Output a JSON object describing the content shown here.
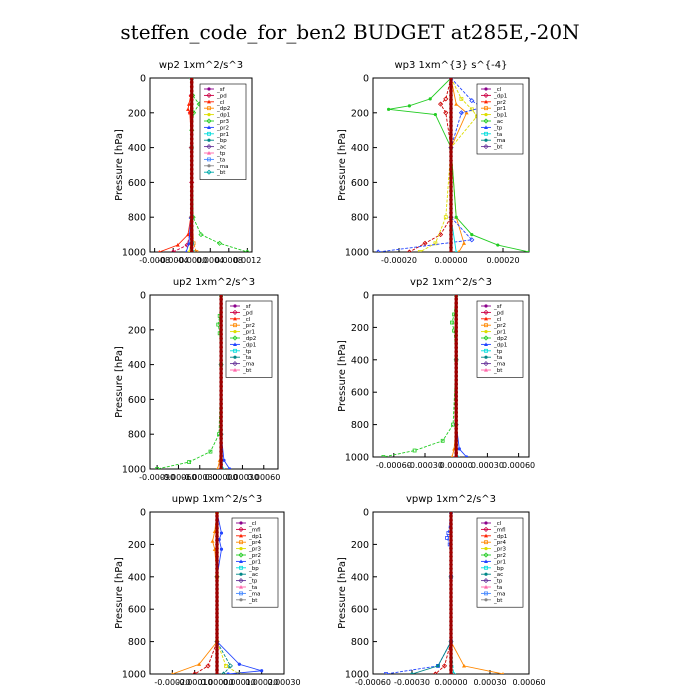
{
  "title": "steffen_code_for_ben2  BUDGET at285E,-20N",
  "chart_data": [
    {
      "type": "line",
      "title": "wp2  1xm^2/s^3",
      "ylabel": "Pressure [hPa]",
      "ylim": [
        1000,
        0
      ],
      "y_ticks": [
        "0",
        "200",
        "400",
        "600",
        "800",
        "1000"
      ],
      "xlim": [
        -0.0009,
        0.0013
      ],
      "x_ticks": [
        {
          "v": -0.0008,
          "label": "-0.0008"
        },
        {
          "v": -0.0004,
          "label": "-0.0004"
        },
        {
          "v": 0.0,
          "label": "-0.0000"
        },
        {
          "v": 0.0004,
          "label": "0.0004"
        },
        {
          "v": 0.0008,
          "label": "0.0008"
        },
        {
          "v": 0.0012,
          "label": "0.0012"
        }
      ],
      "legend": [
        "_sf",
        "_pd",
        "_cl",
        "_dp2",
        "_dp1",
        "_pr3",
        "_pr2",
        "_pr1",
        "_bp",
        "_ac",
        "_tp",
        "_ta",
        "_ma",
        "_bt"
      ],
      "legend_position": "top-right",
      "series": [
        {
          "color": "#8b008b",
          "pressure": [
            0,
            100,
            200,
            400,
            600,
            800,
            900,
            960,
            1000
          ],
          "values": [
            0,
            0,
            0,
            0,
            0,
            0,
            0,
            0,
            2e-05
          ]
        },
        {
          "color": "#cc0044",
          "pressure": [
            0,
            100,
            200,
            400,
            600,
            800,
            900,
            960,
            1000
          ],
          "values": [
            0,
            -1e-05,
            -3e-05,
            -1e-05,
            0,
            -1e-05,
            -4e-05,
            -0.0001,
            -0.0004
          ]
        },
        {
          "color": "#ff2200",
          "pressure": [
            0,
            100,
            150,
            180,
            200,
            400,
            800,
            900,
            960,
            1000
          ],
          "values": [
            0,
            -2e-05,
            -6e-05,
            -8e-05,
            -4e-05,
            0,
            -2e-05,
            -8e-05,
            -0.0003,
            -0.0007
          ]
        },
        {
          "color": "#ff8800",
          "pressure": [
            0,
            400,
            800,
            950,
            1000
          ],
          "values": [
            0,
            0,
            1e-05,
            4e-05,
            0.0001
          ]
        },
        {
          "color": "#dddd00",
          "pressure": [
            0,
            400,
            800,
            950,
            1000
          ],
          "values": [
            0,
            0,
            -1e-05,
            -2e-05,
            -5e-05
          ]
        },
        {
          "color": "#22cc22",
          "pressure": [
            0,
            100,
            150,
            200,
            300,
            800,
            900,
            950,
            1000
          ],
          "values": [
            0,
            2e-05,
            0.00016,
            4e-05,
            0,
            3e-05,
            0.0002,
            0.0006,
            0.0012
          ]
        },
        {
          "color": "#2244ff",
          "pressure": [
            0,
            400,
            800,
            950,
            1000
          ],
          "values": [
            0,
            0,
            -2e-05,
            -6e-05,
            -0.00012
          ]
        },
        {
          "color": "#00dddd",
          "pressure": [
            0,
            400,
            800,
            950,
            1000
          ],
          "values": [
            0,
            0,
            0,
            1e-05,
            2e-05
          ]
        }
      ]
    },
    {
      "type": "line",
      "title": "wp3  1xm^{3} s^{-4}",
      "ylabel": "Pressure [hPa]",
      "ylim": [
        1000,
        0
      ],
      "y_ticks": [
        "0",
        "200",
        "400",
        "600",
        "800",
        "1000"
      ],
      "xlim": [
        -0.0003,
        0.0003
      ],
      "x_ticks": [
        {
          "v": -0.0002,
          "label": "-0.00020"
        },
        {
          "v": 0.0,
          "label": "0.00000"
        },
        {
          "v": 0.0002,
          "label": "0.00020"
        }
      ],
      "legend": [
        "_cl",
        "_dp1",
        "_pr2",
        "_pr1",
        "_bp1",
        "_ac",
        "_tp",
        "_ta",
        "_ma",
        "_bt"
      ],
      "legend_position": "top-right",
      "series": [
        {
          "color": "#8b008b",
          "pressure": [
            0,
            400,
            800,
            1000
          ],
          "values": [
            0,
            0,
            0,
            0
          ]
        },
        {
          "color": "#cc0000",
          "pressure": [
            0,
            120,
            150,
            200,
            400,
            800,
            900,
            950,
            1000
          ],
          "values": [
            0,
            -2e-05,
            -4e-05,
            -2e-05,
            0,
            0,
            -4e-05,
            -0.0001,
            -0.00016
          ]
        },
        {
          "color": "#ff8800",
          "pressure": [
            0,
            150,
            200,
            400,
            800,
            950,
            1000
          ],
          "values": [
            0,
            2e-05,
            6e-05,
            0,
            2e-05,
            5e-05,
            3e-05
          ]
        },
        {
          "color": "#dddd00",
          "pressure": [
            0,
            120,
            180,
            220,
            400,
            800,
            950,
            1000
          ],
          "values": [
            0,
            4e-05,
            8e-05,
            0.0001,
            0,
            -2e-05,
            -6e-05,
            -0.00012
          ]
        },
        {
          "color": "#22cc22",
          "pressure": [
            0,
            120,
            160,
            180,
            210,
            400,
            800,
            900,
            960,
            1000
          ],
          "values": [
            0,
            -8e-05,
            -0.00016,
            -0.00024,
            -6e-05,
            0,
            2e-05,
            8e-05,
            0.00018,
            0.0003
          ]
        },
        {
          "color": "#2244ff",
          "pressure": [
            0,
            130,
            170,
            200,
            400,
            800,
            930,
            1000
          ],
          "values": [
            0,
            8e-05,
            0.00012,
            4e-05,
            0,
            0,
            8e-05,
            -0.00028
          ]
        },
        {
          "color": "#00dddd",
          "pressure": [
            0,
            400,
            800,
            1000
          ],
          "values": [
            0,
            0,
            0,
            2e-05
          ]
        }
      ]
    },
    {
      "type": "line",
      "title": "up2   1xm^2/s^3",
      "ylabel": "Pressure [hPa]",
      "ylim": [
        1000,
        0
      ],
      "y_ticks": [
        "0",
        "200",
        "400",
        "600",
        "800",
        "1000"
      ],
      "xlim": [
        -0.001,
        0.0008
      ],
      "x_ticks": [
        {
          "v": -0.0009,
          "label": "-0.00090"
        },
        {
          "v": -0.0006,
          "label": "-0.00060"
        },
        {
          "v": -0.0003,
          "label": "-0.00030"
        },
        {
          "v": 0.0,
          "label": "0.00000"
        },
        {
          "v": 0.0003,
          "label": "0.00030"
        },
        {
          "v": 0.0006,
          "label": "0.00060"
        }
      ],
      "legend": [
        "_sf",
        "_pd",
        "_cl",
        "_pr2",
        "_pr1",
        "_dp2",
        "_dp1",
        "_tp",
        "_ta",
        "_ma",
        "_bt"
      ],
      "legend_position": "top-right",
      "series": [
        {
          "color": "#8b008b",
          "pressure": [
            0,
            400,
            800,
            1000
          ],
          "values": [
            0,
            0,
            0,
            0
          ]
        },
        {
          "color": "#cc0000",
          "pressure": [
            0,
            400,
            800,
            1000
          ],
          "values": [
            0,
            0,
            0,
            0
          ]
        },
        {
          "color": "#ff8800",
          "pressure": [
            0,
            400,
            800,
            950,
            1000
          ],
          "values": [
            0,
            0,
            0,
            -2e-05,
            -5e-05
          ]
        },
        {
          "color": "#22cc22",
          "pressure": [
            0,
            120,
            170,
            220,
            400,
            800,
            900,
            960,
            1000
          ],
          "values": [
            0,
            -2e-05,
            -4e-05,
            -2e-05,
            0,
            -3e-05,
            -0.00015,
            -0.00045,
            -0.0009
          ]
        },
        {
          "color": "#2244ff",
          "pressure": [
            0,
            400,
            800,
            950,
            1000
          ],
          "values": [
            0,
            0,
            0,
            4e-05,
            0.00012
          ]
        },
        {
          "color": "#00dddd",
          "pressure": [
            0,
            400,
            800,
            1000
          ],
          "values": [
            0,
            0,
            0,
            2e-05
          ]
        }
      ]
    },
    {
      "type": "line",
      "title": "vp2   1xm^2/s^3",
      "ylabel": "Pressure [hPa]",
      "ylim": [
        1000,
        0
      ],
      "y_ticks": [
        "0",
        "200",
        "400",
        "600",
        "800",
        "1000"
      ],
      "xlim": [
        -0.0008,
        0.0007
      ],
      "x_ticks": [
        {
          "v": -0.0006,
          "label": "-0.00060"
        },
        {
          "v": -0.0003,
          "label": "-0.00030"
        },
        {
          "v": 0.0,
          "label": "0.00000"
        },
        {
          "v": 0.0003,
          "label": "0.00030"
        },
        {
          "v": 0.0006,
          "label": "0.00060"
        }
      ],
      "legend": [
        "_sf",
        "_pd",
        "_cl",
        "_pr2",
        "_pr1",
        "_dp2",
        "_dp1",
        "_tp",
        "_ta",
        "_ma",
        "_bt"
      ],
      "legend_position": "top-right",
      "series": [
        {
          "color": "#8b008b",
          "pressure": [
            0,
            400,
            800,
            1000
          ],
          "values": [
            0,
            0,
            0,
            0
          ]
        },
        {
          "color": "#cc0000",
          "pressure": [
            0,
            400,
            800,
            1000
          ],
          "values": [
            0,
            0,
            0,
            0
          ]
        },
        {
          "color": "#ff8800",
          "pressure": [
            0,
            400,
            800,
            950,
            1000
          ],
          "values": [
            0,
            0,
            0,
            -2e-05,
            -4e-05
          ]
        },
        {
          "color": "#22cc22",
          "pressure": [
            0,
            120,
            170,
            220,
            400,
            800,
            900,
            960,
            1000
          ],
          "values": [
            0,
            -2e-05,
            -4e-05,
            -2e-05,
            0,
            -3e-05,
            -0.00013,
            -0.0004,
            -0.0007
          ]
        },
        {
          "color": "#2244ff",
          "pressure": [
            0,
            400,
            800,
            950,
            1000
          ],
          "values": [
            0,
            0,
            0,
            3e-05,
            0.0001
          ]
        },
        {
          "color": "#00dddd",
          "pressure": [
            0,
            400,
            800,
            1000
          ],
          "values": [
            0,
            0,
            0,
            1e-05
          ]
        }
      ]
    },
    {
      "type": "line",
      "title": "upwp   1xm^2/s^3",
      "ylabel": "Pressure [hPa]",
      "ylim": [
        1000,
        0
      ],
      "y_ticks": [
        "0",
        "200",
        "400",
        "600",
        "800",
        "1000"
      ],
      "xlim": [
        -0.0003,
        0.0003
      ],
      "x_ticks": [
        {
          "v": -0.0002,
          "label": "-0.00020"
        },
        {
          "v": -0.0001,
          "label": "-0.00010"
        },
        {
          "v": 0.0,
          "label": "0.00000"
        },
        {
          "v": 0.0001,
          "label": "0.00010"
        },
        {
          "v": 0.0002,
          "label": "0.00020"
        },
        {
          "v": 0.0003,
          "label": "0.00030"
        }
      ],
      "legend": [
        "_cl",
        "_mfl",
        "_dp1",
        "_pr4",
        "_pr3",
        "_pr2",
        "_pr1",
        "_bp",
        "_ac",
        "_tp",
        "_ta",
        "_ma",
        "_bt"
      ],
      "legend_position": "top-right",
      "series": [
        {
          "color": "#8b008b",
          "pressure": [
            0,
            400,
            800,
            1000
          ],
          "values": [
            0,
            0,
            0,
            0
          ]
        },
        {
          "color": "#cc0000",
          "pressure": [
            0,
            400,
            800,
            950,
            1000
          ],
          "values": [
            0,
            0,
            0,
            -4e-05,
            -0.0001
          ]
        },
        {
          "color": "#ff8800",
          "pressure": [
            0,
            120,
            180,
            230,
            400,
            800,
            940,
            1000
          ],
          "values": [
            0,
            -1e-05,
            -2e-05,
            -1e-05,
            0,
            0,
            -8e-05,
            -0.0002
          ]
        },
        {
          "color": "#dddd00",
          "pressure": [
            0,
            400,
            800,
            950,
            1000
          ],
          "values": [
            0,
            0,
            0,
            4e-05,
            0.0001
          ]
        },
        {
          "color": "#2244ff",
          "pressure": [
            0,
            130,
            170,
            230,
            400,
            800,
            940,
            980,
            1000
          ],
          "values": [
            0,
            2e-05,
            1e-05,
            2e-05,
            0,
            0,
            0.0001,
            0.0002,
            5e-05
          ]
        },
        {
          "color": "#008888",
          "pressure": [
            0,
            400,
            800,
            950,
            1000
          ],
          "values": [
            0,
            0,
            0,
            6e-05,
            3e-05
          ]
        }
      ]
    },
    {
      "type": "line",
      "title": "vpwp   1xm^2/s^3",
      "ylabel": "Pressure [hPa]",
      "ylim": [
        1000,
        0
      ],
      "y_ticks": [
        "0",
        "200",
        "400",
        "600",
        "800",
        "1000"
      ],
      "xlim": [
        -0.0006,
        0.0006
      ],
      "x_ticks": [
        {
          "v": -0.0006,
          "label": "-0.00060"
        },
        {
          "v": -0.0003,
          "label": "-0.00030"
        },
        {
          "v": 0.0,
          "label": "0.00000"
        },
        {
          "v": 0.0003,
          "label": "0.00030"
        },
        {
          "v": 0.0006,
          "label": "0.00060"
        }
      ],
      "legend": [
        "_cl",
        "_mfl",
        "_dp1",
        "_pr4",
        "_pr3",
        "_pr2",
        "_pr1",
        "_bp",
        "_ac",
        "_tp",
        "_ta",
        "_ma",
        "_bt"
      ],
      "legend_position": "top-right",
      "series": [
        {
          "color": "#8b008b",
          "pressure": [
            0,
            400,
            800,
            1000
          ],
          "values": [
            0,
            0,
            0,
            0
          ]
        },
        {
          "color": "#cc0000",
          "pressure": [
            0,
            400,
            800,
            950,
            1000
          ],
          "values": [
            0,
            0,
            0,
            -5e-05,
            -0.00012
          ]
        },
        {
          "color": "#ff8800",
          "pressure": [
            0,
            400,
            800,
            950,
            1000
          ],
          "values": [
            0,
            0,
            0,
            0.0001,
            0.0004
          ]
        },
        {
          "color": "#2244ff",
          "pressure": [
            0,
            130,
            160,
            200,
            400,
            800,
            950,
            1000
          ],
          "values": [
            0,
            -2e-05,
            -3e-05,
            -1e-05,
            0,
            0,
            -0.0001,
            -0.0005
          ]
        },
        {
          "color": "#008888",
          "pressure": [
            0,
            400,
            800,
            950,
            1000
          ],
          "values": [
            0,
            0,
            0,
            -0.0001,
            -0.0003
          ]
        },
        {
          "color": "#00dddd",
          "pressure": [
            0,
            400,
            800,
            1000
          ],
          "values": [
            0,
            0,
            0,
            2e-05
          ]
        }
      ]
    }
  ]
}
